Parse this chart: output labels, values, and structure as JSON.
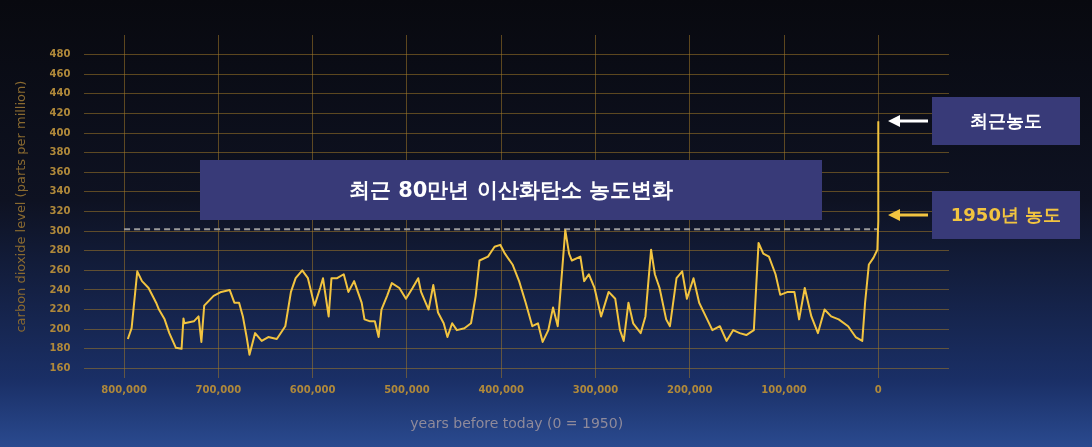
{
  "chart_data": {
    "type": "line",
    "title": "최근 80만년 이산화탄소 농도변화",
    "xlabel": "years before today (0 = 1950)",
    "ylabel": "carbon dioxide level (parts per million)",
    "xlim": [
      842000,
      -75000
    ],
    "xticks": [
      {
        "value": 800000,
        "label": "800,000"
      },
      {
        "value": 700000,
        "label": "700,000"
      },
      {
        "value": 600000,
        "label": "600,000"
      },
      {
        "value": 500000,
        "label": "500,000"
      },
      {
        "value": 400000,
        "label": "400,000"
      },
      {
        "value": 300000,
        "label": "300,000"
      },
      {
        "value": 200000,
        "label": "200,000"
      },
      {
        "value": 100000,
        "label": "100,000"
      },
      0
    ],
    "ylim": [
      150,
      500
    ],
    "yticks": [
      160,
      180,
      200,
      220,
      240,
      260,
      280,
      300,
      320,
      340,
      360,
      380,
      400,
      420,
      440,
      460,
      480
    ],
    "grid": true,
    "legend": false,
    "ref_lines": [
      {
        "axis": "y",
        "value": 302,
        "color": "#9a9a9a",
        "line_style": "dashed"
      }
    ],
    "annotations": [
      "최근농도",
      "1950년 농도"
    ],
    "series": [
      {
        "color": "#f2c440",
        "x": [
          796000,
          792000,
          786000,
          781000,
          774000,
          766000,
          763000,
          757000,
          752000,
          745000,
          739000,
          737000,
          736000,
          726000,
          721000,
          718000,
          715000,
          705000,
          697000,
          688000,
          683000,
          678000,
          674000,
          670000,
          667000,
          661000,
          654000,
          647000,
          638000,
          629000,
          623000,
          618000,
          611000,
          605000,
          598000,
          592000,
          589000,
          583000,
          580000,
          574000,
          567000,
          562000,
          556000,
          548000,
          545000,
          539000,
          534000,
          530000,
          527000,
          521000,
          516000,
          508000,
          501000,
          494000,
          488000,
          485000,
          477000,
          472000,
          467000,
          461000,
          457000,
          452000,
          447000,
          439000,
          432000,
          427000,
          423000,
          414000,
          407000,
          401000,
          396000,
          388000,
          381000,
          374000,
          367000,
          361000,
          356000,
          350000,
          345000,
          340000,
          336000,
          332000,
          328000,
          325000,
          316000,
          312000,
          307000,
          301000,
          294000,
          286000,
          279000,
          274000,
          270000,
          265000,
          260000,
          252000,
          247000,
          241000,
          237000,
          232000,
          225000,
          221000,
          214000,
          208000,
          203000,
          196000,
          190000,
          183000,
          176000,
          168000,
          161000,
          154000,
          147000,
          140000,
          132000,
          127000,
          122000,
          116000,
          109000,
          104000,
          96000,
          89000,
          84000,
          78000,
          71000,
          64000,
          57000,
          50000,
          42000,
          32000,
          24000,
          17000,
          14000,
          10000,
          5000,
          1000,
          0,
          0
        ],
        "values": [
          190,
          201,
          259,
          249,
          242,
          227,
          220,
          210,
          196,
          181,
          180,
          211,
          206,
          208,
          213,
          187,
          224,
          234,
          238,
          240,
          227,
          227,
          213,
          192,
          174,
          196,
          188,
          192,
          190,
          203,
          238,
          252,
          260,
          252,
          224,
          242,
          252,
          213,
          252,
          252,
          256,
          238,
          249,
          227,
          210,
          208,
          208,
          192,
          220,
          234,
          247,
          242,
          231,
          242,
          252,
          238,
          220,
          245,
          217,
          206,
          192,
          206,
          199,
          201,
          206,
          234,
          270,
          274,
          284,
          286,
          277,
          266,
          249,
          227,
          203,
          206,
          187,
          199,
          222,
          203,
          252,
          301,
          277,
          270,
          274,
          249,
          256,
          242,
          213,
          238,
          231,
          199,
          188,
          227,
          206,
          196,
          213,
          281,
          256,
          242,
          210,
          203,
          252,
          259,
          231,
          252,
          227,
          213,
          199,
          203,
          188,
          199,
          196,
          194,
          199,
          288,
          277,
          274,
          256,
          235,
          238,
          238,
          210,
          242,
          213,
          196,
          220,
          213,
          210,
          203,
          192,
          188,
          227,
          266,
          273,
          281,
          310,
          412
        ]
      }
    ]
  }
}
